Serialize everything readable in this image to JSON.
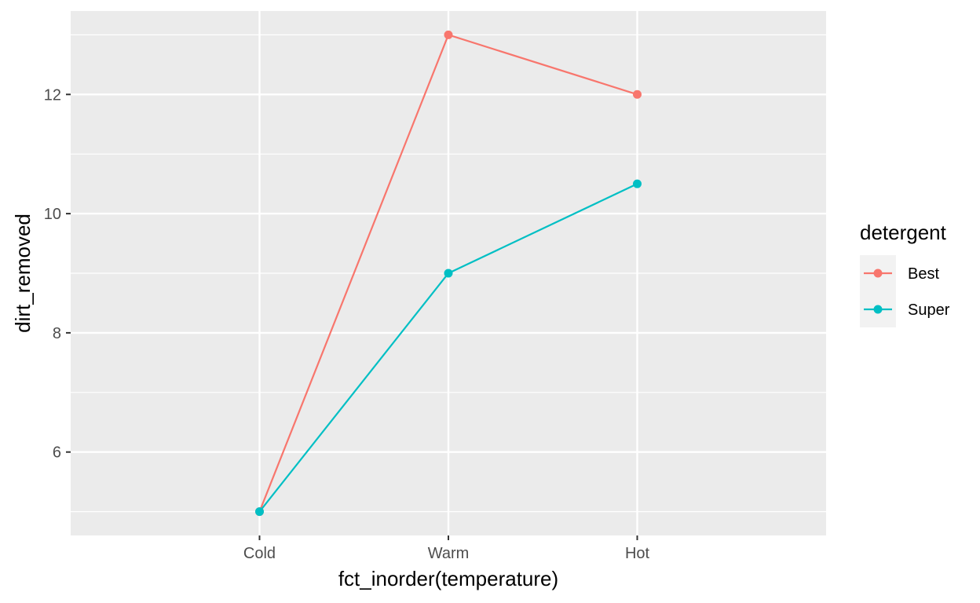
{
  "chart_data": {
    "type": "line",
    "x_categories": [
      "Cold",
      "Warm",
      "Hot"
    ],
    "xlabel": "fct_inorder(temperature)",
    "ylabel": "dirt_removed",
    "ylim": [
      4.6,
      13.4
    ],
    "y_ticks": [
      6,
      8,
      10,
      12
    ],
    "y_tick_labels": [
      "6",
      "8",
      "10",
      "12"
    ],
    "grid": true,
    "legend": {
      "title": "detergent",
      "position": "right"
    },
    "series": [
      {
        "name": "Best",
        "color": "#F8766D",
        "values": [
          5,
          13,
          12
        ]
      },
      {
        "name": "Super",
        "color": "#00BFC4",
        "values": [
          5,
          9,
          10.5
        ]
      }
    ],
    "colors": {
      "panel_background": "#EBEBEB",
      "grid": "#FFFFFF",
      "legend_key_background": "#F2F2F2"
    }
  }
}
